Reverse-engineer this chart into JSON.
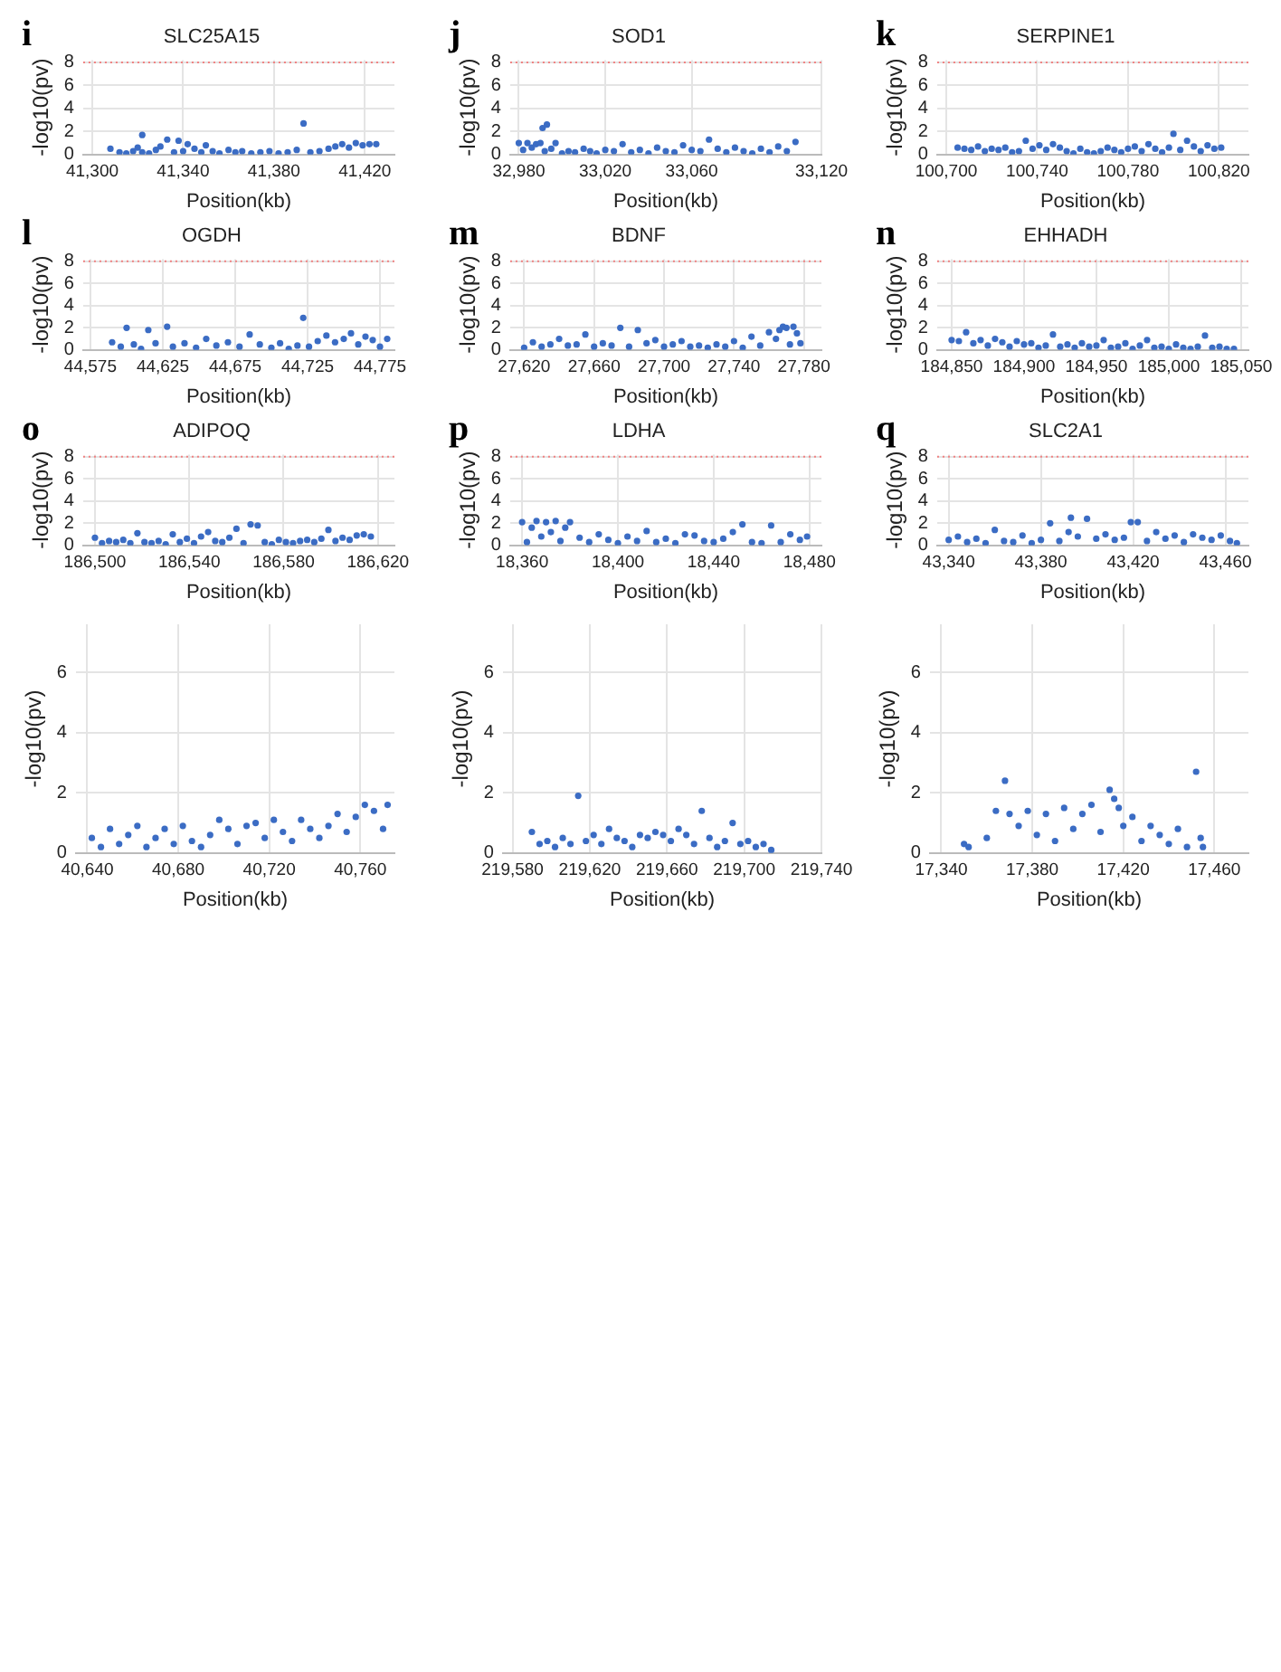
{
  "chart_data": [
    {
      "type": "scatter",
      "title": "SLC25A15",
      "annotations": [
        "i"
      ],
      "xlabel": "Position(kb)",
      "ylabel": "-log10(pv)",
      "color": "#3b6cc4",
      "marker": "circle",
      "grid": true,
      "xlim": [
        41296,
        41433
      ],
      "xticks": [
        {
          "value": 41300,
          "label": "41,300"
        },
        {
          "value": 41340,
          "label": "41,340"
        },
        {
          "value": 41380,
          "label": "41,380"
        },
        {
          "value": 41420,
          "label": "41,420"
        }
      ],
      "ylim": [
        0,
        8.2
      ],
      "yticks": [
        0,
        2,
        4,
        6,
        8
      ],
      "ref_lines": [
        {
          "axis": "y",
          "value": 8,
          "color": "#f08080",
          "line_style": "dotted"
        }
      ],
      "x": [
        41308,
        41312,
        41315,
        41318,
        41320,
        41322,
        41322,
        41325,
        41328,
        41330,
        41333,
        41336,
        41338,
        41340,
        41342,
        41345,
        41348,
        41350,
        41353,
        41356,
        41360,
        41363,
        41366,
        41370,
        41374,
        41378,
        41382,
        41386,
        41390,
        41393,
        41396,
        41400,
        41404,
        41407,
        41410,
        41413,
        41416,
        41419,
        41422,
        41425
      ],
      "values": [
        0.5,
        0.2,
        0.1,
        0.3,
        0.6,
        1.7,
        0.2,
        0.1,
        0.4,
        0.7,
        1.3,
        0.2,
        1.2,
        0.3,
        0.9,
        0.5,
        0.2,
        0.8,
        0.3,
        0.1,
        0.4,
        0.2,
        0.3,
        0.1,
        0.2,
        0.3,
        0.1,
        0.2,
        0.4,
        2.7,
        0.2,
        0.3,
        0.5,
        0.7,
        0.9,
        0.6,
        1.0,
        0.8,
        0.9,
        0.9
      ]
    },
    {
      "type": "scatter",
      "title": "SOD1",
      "annotations": [
        "j"
      ],
      "xlabel": "Position(kb)",
      "ylabel": "-log10(pv)",
      "color": "#3b6cc4",
      "marker": "circle",
      "grid": true,
      "xlim": [
        32976,
        33120
      ],
      "xticks": [
        {
          "value": 32980,
          "label": "32,980"
        },
        {
          "value": 33020,
          "label": "33,020"
        },
        {
          "value": 33060,
          "label": "33,060"
        },
        {
          "value": 33120,
          "label": "33,120"
        }
      ],
      "ylim": [
        0,
        8.2
      ],
      "yticks": [
        0,
        2,
        4,
        6,
        8
      ],
      "ref_lines": [
        {
          "axis": "y",
          "value": 8,
          "color": "#f08080",
          "line_style": "dotted"
        }
      ],
      "x": [
        32980,
        32982,
        32984,
        32986,
        32988,
        32990,
        32992,
        32991,
        32993,
        32995,
        32997,
        33000,
        33003,
        33006,
        33010,
        33013,
        33016,
        33020,
        33024,
        33028,
        33032,
        33036,
        33040,
        33044,
        33048,
        33052,
        33056,
        33060,
        33064,
        33068,
        33072,
        33076,
        33080,
        33084,
        33088,
        33092,
        33096,
        33100,
        33104,
        33108
      ],
      "values": [
        1.0,
        0.4,
        1.0,
        0.6,
        0.9,
        1.0,
        0.3,
        2.3,
        2.6,
        0.5,
        1.0,
        0.1,
        0.3,
        0.2,
        0.5,
        0.3,
        0.1,
        0.4,
        0.3,
        0.9,
        0.2,
        0.4,
        0.1,
        0.6,
        0.3,
        0.2,
        0.8,
        0.4,
        0.3,
        1.3,
        0.5,
        0.2,
        0.6,
        0.3,
        0.1,
        0.5,
        0.2,
        0.7,
        0.3,
        1.1
      ]
    },
    {
      "type": "scatter",
      "title": "SERPINE1",
      "annotations": [
        "k"
      ],
      "xlabel": "Position(kb)",
      "ylabel": "-log10(pv)",
      "color": "#3b6cc4",
      "marker": "circle",
      "grid": true,
      "xlim": [
        100696,
        100833
      ],
      "xticks": [
        {
          "value": 100700,
          "label": "100,700"
        },
        {
          "value": 100740,
          "label": "100,740"
        },
        {
          "value": 100780,
          "label": "100,780"
        },
        {
          "value": 100820,
          "label": "100,820"
        }
      ],
      "ylim": [
        0,
        8.2
      ],
      "yticks": [
        0,
        2,
        4,
        6,
        8
      ],
      "ref_lines": [
        {
          "axis": "y",
          "value": 8,
          "color": "#f08080",
          "line_style": "dotted"
        }
      ],
      "x": [
        100705,
        100708,
        100711,
        100714,
        100717,
        100720,
        100723,
        100726,
        100729,
        100732,
        100735,
        100738,
        100741,
        100744,
        100747,
        100750,
        100753,
        100756,
        100759,
        100762,
        100765,
        100768,
        100771,
        100774,
        100777,
        100780,
        100783,
        100786,
        100789,
        100792,
        100795,
        100798,
        100800,
        100803,
        100806,
        100809,
        100812,
        100815,
        100818,
        100821
      ],
      "values": [
        0.6,
        0.5,
        0.4,
        0.7,
        0.3,
        0.5,
        0.4,
        0.6,
        0.2,
        0.3,
        1.2,
        0.5,
        0.8,
        0.4,
        0.9,
        0.6,
        0.3,
        0.1,
        0.5,
        0.2,
        0.1,
        0.3,
        0.6,
        0.4,
        0.2,
        0.5,
        0.7,
        0.3,
        0.9,
        0.5,
        0.2,
        0.6,
        1.8,
        0.4,
        1.2,
        0.7,
        0.3,
        0.8,
        0.5,
        0.6
      ]
    },
    {
      "type": "scatter",
      "title": "OGDH",
      "annotations": [
        "l"
      ],
      "xlabel": "Position(kb)",
      "ylabel": "-log10(pv)",
      "color": "#3b6cc4",
      "marker": "circle",
      "grid": true,
      "xlim": [
        44570,
        44785
      ],
      "xticks": [
        {
          "value": 44575,
          "label": "44,575"
        },
        {
          "value": 44625,
          "label": "44,625"
        },
        {
          "value": 44675,
          "label": "44,675"
        },
        {
          "value": 44725,
          "label": "44,725"
        },
        {
          "value": 44775,
          "label": "44,775"
        }
      ],
      "ylim": [
        0,
        8.2
      ],
      "yticks": [
        0,
        2,
        4,
        6,
        8
      ],
      "ref_lines": [
        {
          "axis": "y",
          "value": 8,
          "color": "#f08080",
          "line_style": "dotted"
        }
      ],
      "x": [
        44590,
        44596,
        44600,
        44605,
        44610,
        44615,
        44620,
        44628,
        44632,
        44640,
        44648,
        44655,
        44662,
        44670,
        44678,
        44685,
        44692,
        44700,
        44706,
        44712,
        44718,
        44722,
        44726,
        44732,
        44738,
        44744,
        44750,
        44755,
        44760,
        44765,
        44770,
        44775,
        44780
      ],
      "values": [
        0.7,
        0.3,
        2.0,
        0.5,
        0.1,
        1.8,
        0.6,
        2.1,
        0.3,
        0.6,
        0.2,
        1.0,
        0.4,
        0.7,
        0.3,
        1.4,
        0.5,
        0.2,
        0.6,
        0.1,
        0.4,
        2.9,
        0.3,
        0.8,
        1.3,
        0.7,
        1.0,
        1.5,
        0.5,
        1.2,
        0.9,
        0.3,
        1.0
      ]
    },
    {
      "type": "scatter",
      "title": "BDNF",
      "annotations": [
        "m"
      ],
      "xlabel": "Position(kb)",
      "ylabel": "-log10(pv)",
      "color": "#3b6cc4",
      "marker": "circle",
      "grid": true,
      "xlim": [
        27612,
        27790
      ],
      "xticks": [
        {
          "value": 27620,
          "label": "27,620"
        },
        {
          "value": 27660,
          "label": "27,660"
        },
        {
          "value": 27700,
          "label": "27,700"
        },
        {
          "value": 27740,
          "label": "27,740"
        },
        {
          "value": 27780,
          "label": "27,780"
        }
      ],
      "ylim": [
        0,
        8.2
      ],
      "yticks": [
        0,
        2,
        4,
        6,
        8
      ],
      "ref_lines": [
        {
          "axis": "y",
          "value": 8,
          "color": "#f08080",
          "line_style": "dotted"
        }
      ],
      "x": [
        27620,
        27625,
        27630,
        27635,
        27640,
        27645,
        27650,
        27655,
        27660,
        27665,
        27670,
        27675,
        27680,
        27685,
        27690,
        27695,
        27700,
        27705,
        27710,
        27715,
        27720,
        27725,
        27730,
        27735,
        27740,
        27745,
        27750,
        27755,
        27760,
        27764,
        27766,
        27768,
        27770,
        27772,
        27774,
        27776,
        27778
      ],
      "values": [
        0.2,
        0.7,
        0.3,
        0.5,
        1.0,
        0.4,
        0.5,
        1.4,
        0.3,
        0.6,
        0.4,
        2.0,
        0.3,
        1.8,
        0.6,
        0.9,
        0.3,
        0.5,
        0.8,
        0.3,
        0.4,
        0.2,
        0.5,
        0.3,
        0.8,
        0.2,
        1.2,
        0.4,
        1.6,
        1.0,
        1.8,
        2.1,
        2.0,
        0.5,
        2.1,
        1.5,
        0.6
      ]
    },
    {
      "type": "scatter",
      "title": "EHHADH",
      "annotations": [
        "n"
      ],
      "xlabel": "Position(kb)",
      "ylabel": "-log10(pv)",
      "color": "#3b6cc4",
      "marker": "circle",
      "grid": true,
      "xlim": [
        184840,
        185055
      ],
      "xticks": [
        {
          "value": 184850,
          "label": "184,850"
        },
        {
          "value": 184900,
          "label": "184,900"
        },
        {
          "value": 184950,
          "label": "184,950"
        },
        {
          "value": 185000,
          "label": "185,000"
        },
        {
          "value": 185050,
          "label": "185,050"
        }
      ],
      "ylim": [
        0,
        8.2
      ],
      "yticks": [
        0,
        2,
        4,
        6,
        8
      ],
      "ref_lines": [
        {
          "axis": "y",
          "value": 8,
          "color": "#f08080",
          "line_style": "dotted"
        }
      ],
      "x": [
        184850,
        184855,
        184860,
        184865,
        184870,
        184875,
        184880,
        184885,
        184890,
        184895,
        184900,
        184905,
        184910,
        184915,
        184920,
        184925,
        184930,
        184935,
        184940,
        184945,
        184950,
        184955,
        184960,
        184965,
        184970,
        184975,
        184980,
        184985,
        184990,
        184995,
        185000,
        185005,
        185010,
        185015,
        185020,
        185025,
        185030,
        185035,
        185040,
        185045
      ],
      "values": [
        0.9,
        0.8,
        1.6,
        0.6,
        0.9,
        0.4,
        1.0,
        0.7,
        0.3,
        0.8,
        0.5,
        0.6,
        0.2,
        0.4,
        1.4,
        0.3,
        0.5,
        0.2,
        0.6,
        0.3,
        0.4,
        0.9,
        0.2,
        0.3,
        0.6,
        0.1,
        0.4,
        0.9,
        0.2,
        0.3,
        0.1,
        0.5,
        0.2,
        0.1,
        0.3,
        1.3,
        0.2,
        0.3,
        0.1,
        0.1
      ]
    },
    {
      "type": "scatter",
      "title": "ADIPOQ",
      "annotations": [
        "o"
      ],
      "xlabel": "Position(kb)",
      "ylabel": "-log10(pv)",
      "color": "#3b6cc4",
      "marker": "circle",
      "grid": true,
      "xlim": [
        186495,
        186627
      ],
      "xticks": [
        {
          "value": 186500,
          "label": "186,500"
        },
        {
          "value": 186540,
          "label": "186,540"
        },
        {
          "value": 186580,
          "label": "186,580"
        },
        {
          "value": 186620,
          "label": "186,620"
        }
      ],
      "ylim": [
        0,
        8.2
      ],
      "yticks": [
        0,
        2,
        4,
        6,
        8
      ],
      "ref_lines": [
        {
          "axis": "y",
          "value": 8,
          "color": "#f08080",
          "line_style": "dotted"
        }
      ],
      "x": [
        186500,
        186503,
        186506,
        186509,
        186512,
        186515,
        186518,
        186521,
        186524,
        186527,
        186530,
        186533,
        186536,
        186539,
        186542,
        186545,
        186548,
        186551,
        186554,
        186557,
        186560,
        186563,
        186566,
        186569,
        186572,
        186575,
        186578,
        186581,
        186584,
        186587,
        186590,
        186593,
        186596,
        186599,
        186602,
        186605,
        186608,
        186611,
        186614,
        186617
      ],
      "values": [
        0.7,
        0.2,
        0.4,
        0.3,
        0.5,
        0.2,
        1.1,
        0.3,
        0.2,
        0.4,
        0.1,
        1.0,
        0.3,
        0.6,
        0.2,
        0.8,
        1.2,
        0.4,
        0.3,
        0.7,
        1.5,
        0.2,
        1.9,
        1.8,
        0.3,
        0.1,
        0.5,
        0.3,
        0.2,
        0.4,
        0.5,
        0.3,
        0.6,
        1.4,
        0.4,
        0.7,
        0.5,
        0.9,
        1.0,
        0.8
      ]
    },
    {
      "type": "scatter",
      "title": "LDHA",
      "annotations": [
        "p"
      ],
      "xlabel": "Position(kb)",
      "ylabel": "-log10(pv)",
      "color": "#3b6cc4",
      "marker": "circle",
      "grid": true,
      "xlim": [
        18355,
        18485
      ],
      "xticks": [
        {
          "value": 18360,
          "label": "18,360"
        },
        {
          "value": 18400,
          "label": "18,400"
        },
        {
          "value": 18440,
          "label": "18,440"
        },
        {
          "value": 18480,
          "label": "18,480"
        }
      ],
      "ylim": [
        0,
        8.2
      ],
      "yticks": [
        0,
        2,
        4,
        6,
        8
      ],
      "ref_lines": [
        {
          "axis": "y",
          "value": 8,
          "color": "#f08080",
          "line_style": "dotted"
        }
      ],
      "x": [
        18360,
        18362,
        18364,
        18366,
        18368,
        18370,
        18372,
        18374,
        18376,
        18378,
        18380,
        18384,
        18388,
        18392,
        18396,
        18400,
        18404,
        18408,
        18412,
        18416,
        18420,
        18424,
        18428,
        18432,
        18436,
        18440,
        18444,
        18448,
        18452,
        18456,
        18460,
        18464,
        18468,
        18472,
        18476,
        18479
      ],
      "values": [
        2.1,
        0.3,
        1.6,
        2.2,
        0.8,
        2.1,
        1.2,
        2.2,
        0.4,
        1.6,
        2.1,
        0.7,
        0.3,
        1.0,
        0.5,
        0.2,
        0.8,
        0.4,
        1.3,
        0.3,
        0.6,
        0.2,
        1.0,
        0.9,
        0.4,
        0.3,
        0.6,
        1.2,
        1.9,
        0.3,
        0.2,
        1.8,
        0.3,
        1.0,
        0.5,
        0.8
      ]
    },
    {
      "type": "scatter",
      "title": "SLC2A1",
      "annotations": [
        "q"
      ],
      "xlabel": "Position(kb)",
      "ylabel": "-log10(pv)",
      "color": "#3b6cc4",
      "marker": "circle",
      "grid": true,
      "xlim": [
        43335,
        43470
      ],
      "xticks": [
        {
          "value": 43340,
          "label": "43,340"
        },
        {
          "value": 43380,
          "label": "43,380"
        },
        {
          "value": 43420,
          "label": "43,420"
        },
        {
          "value": 43460,
          "label": "43,460"
        }
      ],
      "ylim": [
        0,
        8.2
      ],
      "yticks": [
        0,
        2,
        4,
        6,
        8
      ],
      "ref_lines": [
        {
          "axis": "y",
          "value": 8,
          "color": "#f08080",
          "line_style": "dotted"
        }
      ],
      "x": [
        43340,
        43344,
        43348,
        43352,
        43356,
        43360,
        43364,
        43368,
        43372,
        43376,
        43380,
        43384,
        43388,
        43392,
        43393,
        43396,
        43400,
        43404,
        43408,
        43412,
        43416,
        43419,
        43422,
        43426,
        43430,
        43434,
        43438,
        43442,
        43446,
        43450,
        43454,
        43458,
        43462,
        43465
      ],
      "values": [
        0.5,
        0.8,
        0.3,
        0.6,
        0.2,
        1.4,
        0.4,
        0.3,
        0.9,
        0.2,
        0.5,
        2.0,
        0.4,
        1.2,
        2.5,
        0.8,
        2.4,
        0.6,
        1.0,
        0.5,
        0.7,
        2.1,
        2.1,
        0.4,
        1.2,
        0.6,
        0.9,
        0.3,
        1.0,
        0.7,
        0.5,
        0.9,
        0.4,
        0.2
      ]
    },
    {
      "type": "scatter",
      "xlabel": "Position(kb)",
      "ylabel": "-log10(pv)",
      "color": "#3b6cc4",
      "marker": "circle",
      "grid": true,
      "xlim": [
        40635,
        40775
      ],
      "xticks": [
        {
          "value": 40640,
          "label": "40,640"
        },
        {
          "value": 40680,
          "label": "40,680"
        },
        {
          "value": 40720,
          "label": "40,720"
        },
        {
          "value": 40760,
          "label": "40,760"
        }
      ],
      "ylim": [
        0,
        7.6
      ],
      "yticks": [
        0,
        2,
        4,
        6
      ],
      "x": [
        40642,
        40646,
        40650,
        40654,
        40658,
        40662,
        40666,
        40670,
        40674,
        40678,
        40682,
        40686,
        40690,
        40694,
        40698,
        40702,
        40706,
        40710,
        40714,
        40718,
        40722,
        40726,
        40730,
        40734,
        40738,
        40742,
        40746,
        40750,
        40754,
        40758,
        40762,
        40766,
        40770,
        40772
      ],
      "values": [
        0.5,
        0.2,
        0.8,
        0.3,
        0.6,
        0.9,
        0.2,
        0.5,
        0.8,
        0.3,
        0.9,
        0.4,
        0.2,
        0.6,
        1.1,
        0.8,
        0.3,
        0.9,
        1.0,
        0.5,
        1.1,
        0.7,
        0.4,
        1.1,
        0.8,
        0.5,
        0.9,
        1.3,
        0.7,
        1.2,
        1.6,
        1.4,
        0.8,
        1.6
      ]
    },
    {
      "type": "scatter",
      "xlabel": "Position(kb)",
      "ylabel": "-log10(pv)",
      "color": "#3b6cc4",
      "marker": "circle",
      "grid": true,
      "xlim": [
        219575,
        219740
      ],
      "xticks": [
        {
          "value": 219580,
          "label": "219,580"
        },
        {
          "value": 219620,
          "label": "219,620"
        },
        {
          "value": 219660,
          "label": "219,660"
        },
        {
          "value": 219700,
          "label": "219,700"
        },
        {
          "value": 219740,
          "label": "219,740"
        }
      ],
      "ylim": [
        0,
        7.6
      ],
      "yticks": [
        0,
        2,
        4,
        6
      ],
      "x": [
        219590,
        219594,
        219598,
        219602,
        219606,
        219610,
        219614,
        219618,
        219622,
        219626,
        219630,
        219634,
        219638,
        219642,
        219646,
        219650,
        219654,
        219658,
        219662,
        219666,
        219670,
        219674,
        219678,
        219682,
        219686,
        219690,
        219694,
        219698,
        219702,
        219706,
        219710,
        219714
      ],
      "values": [
        0.7,
        0.3,
        0.4,
        0.2,
        0.5,
        0.3,
        1.9,
        0.4,
        0.6,
        0.3,
        0.8,
        0.5,
        0.4,
        0.2,
        0.6,
        0.5,
        0.7,
        0.6,
        0.4,
        0.8,
        0.6,
        0.3,
        1.4,
        0.5,
        0.2,
        0.4,
        1.0,
        0.3,
        0.4,
        0.2,
        0.3,
        0.1
      ]
    },
    {
      "type": "scatter",
      "xlabel": "Position(kb)",
      "ylabel": "-log10(pv)",
      "color": "#3b6cc4",
      "marker": "circle",
      "grid": true,
      "xlim": [
        17335,
        17475
      ],
      "xticks": [
        {
          "value": 17340,
          "label": "17,340"
        },
        {
          "value": 17380,
          "label": "17,380"
        },
        {
          "value": 17420,
          "label": "17,420"
        },
        {
          "value": 17460,
          "label": "17,460"
        }
      ],
      "ylim": [
        0,
        7.6
      ],
      "yticks": [
        0,
        2,
        4,
        6
      ],
      "x": [
        17350,
        17352,
        17360,
        17364,
        17368,
        17370,
        17374,
        17378,
        17382,
        17386,
        17390,
        17394,
        17398,
        17402,
        17406,
        17410,
        17414,
        17416,
        17418,
        17420,
        17424,
        17428,
        17432,
        17436,
        17440,
        17444,
        17448,
        17452,
        17454,
        17455
      ],
      "values": [
        0.3,
        0.2,
        0.5,
        1.4,
        2.4,
        1.3,
        0.9,
        1.4,
        0.6,
        1.3,
        0.4,
        1.5,
        0.8,
        1.3,
        1.6,
        0.7,
        2.1,
        1.8,
        1.5,
        0.9,
        1.2,
        0.4,
        0.9,
        0.6,
        0.3,
        0.8,
        0.2,
        2.7,
        0.5,
        0.2
      ]
    }
  ]
}
